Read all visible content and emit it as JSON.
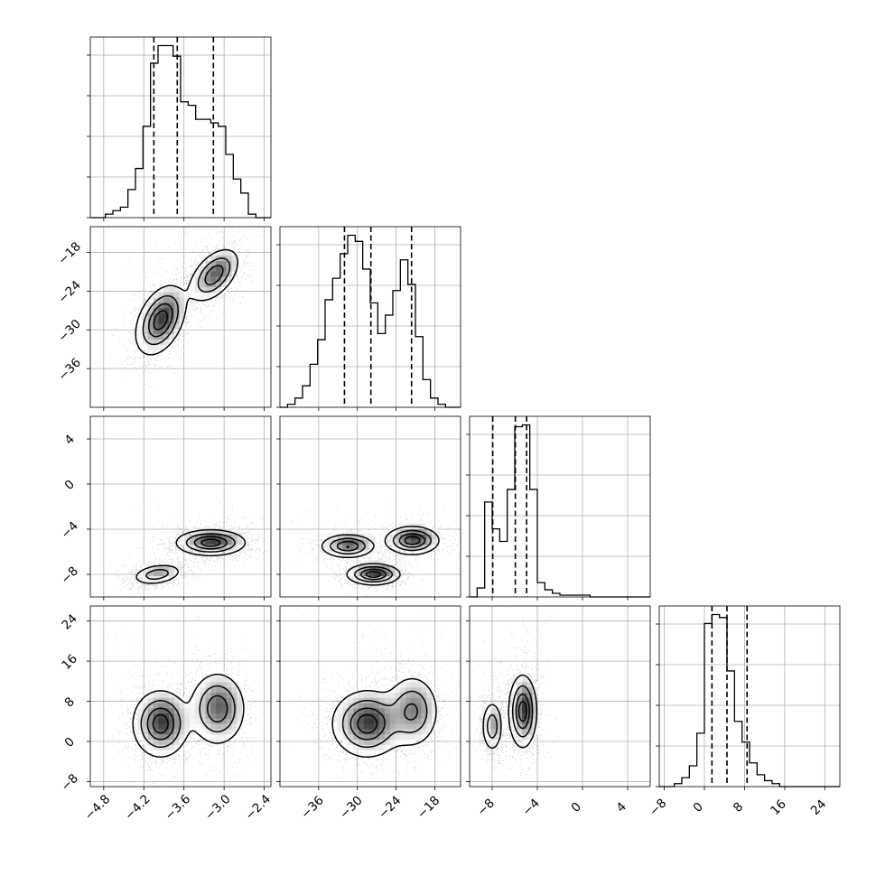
{
  "chart_data": {
    "type": "corner",
    "title": "",
    "parameters": [
      {
        "name": "",
        "range": [
          -5.0,
          -2.3
        ],
        "ticks": [
          -4.8,
          -4.2,
          -3.6,
          -3.0,
          -2.4
        ],
        "tick_labels": [
          "−4.8",
          "−4.2",
          "−3.6",
          "−3.0",
          "−2.4"
        ],
        "quantiles": [
          -4.05,
          -3.7,
          -3.16
        ],
        "components": [
          {
            "w": 0.5,
            "mu": -3.9,
            "sd": 0.2
          },
          {
            "w": 0.5,
            "mu": -3.1,
            "sd": 0.2
          }
        ]
      },
      {
        "name": "",
        "range": [
          -42.0,
          -14.0
        ],
        "ticks": [
          -36,
          -30,
          -24,
          -18
        ],
        "tick_labels": [
          "−36",
          "−30",
          "−24",
          "−18"
        ],
        "quantiles": [
          -32.0,
          -27.9,
          -21.6
        ],
        "components": [
          {
            "w": 0.6,
            "mu": -28.5,
            "sd": 2.6
          },
          {
            "w": 0.4,
            "mu": -21.5,
            "sd": 2.2
          }
        ]
      },
      {
        "name": "",
        "range": [
          -10.0,
          6.0
        ],
        "ticks": [
          -8,
          -4,
          0,
          4
        ],
        "tick_labels": [
          "−8",
          "−4",
          "0",
          "4"
        ],
        "quantiles": [
          -7.95,
          -5.95,
          -4.95
        ],
        "components": [
          {
            "w": 0.35,
            "mu": -8.0,
            "sd": 0.45
          },
          {
            "w": 0.6,
            "mu": -5.3,
            "sd": 0.6
          },
          {
            "w": 0.05,
            "mu": -2.0,
            "sd": 3.0
          }
        ]
      },
      {
        "name": "",
        "range": [
          -9.0,
          27.0
        ],
        "ticks": [
          -8,
          0,
          8,
          16,
          24
        ],
        "tick_labels": [
          "−8",
          "0",
          "8",
          "16",
          "24"
        ],
        "quantiles": [
          1.5,
          4.5,
          8.5
        ],
        "components": [
          {
            "w": 1.0,
            "mu": 4.8,
            "sd": 3.8
          }
        ]
      }
    ],
    "diagonal_histograms": [
      {
        "bins": [
          -5.0,
          -2.3
        ],
        "counts": [
          0,
          0,
          1,
          2,
          3,
          8,
          14,
          26,
          44,
          49,
          49,
          46,
          33,
          32,
          28,
          28,
          27,
          26,
          18,
          11,
          7,
          1,
          0,
          0
        ]
      },
      {
        "bins": [
          -42.0,
          -14.0
        ],
        "counts": [
          0,
          1,
          3,
          7,
          14,
          22,
          35,
          42,
          50,
          56,
          54,
          45,
          34,
          24,
          30,
          38,
          48,
          40,
          23,
          9,
          3,
          1,
          0,
          0
        ]
      },
      {
        "bins": [
          -10.0,
          6.0
        ],
        "counts": [
          0,
          5,
          53,
          38,
          31,
          60,
          95,
          96,
          60,
          8,
          4,
          2,
          1,
          1,
          1,
          1,
          0,
          0,
          0,
          0,
          0,
          0,
          0,
          0
        ]
      },
      {
        "bins": [
          -9.0,
          27.0
        ],
        "counts": [
          0,
          0,
          1,
          3,
          7,
          18,
          55,
          58,
          57,
          39,
          22,
          15,
          8,
          4,
          2,
          1,
          0,
          0,
          0,
          0,
          0,
          0,
          0,
          0
        ]
      }
    ],
    "blobs": [
      {
        "pair": [
          1,
          0
        ],
        "centers": [
          {
            "x": -3.95,
            "y": -28.5,
            "sx": 0.18,
            "sy": 2.6,
            "rho": 0.4,
            "w": 0.55
          },
          {
            "x": -3.15,
            "y": -21.5,
            "sx": 0.18,
            "sy": 2.0,
            "rho": 0.5,
            "w": 0.45
          }
        ]
      },
      {
        "pair": [
          2,
          0
        ],
        "centers": [
          {
            "x": -4.0,
            "y": -8.0,
            "sx": 0.18,
            "sy": 0.45,
            "rho": 0.3,
            "w": 0.35
          },
          {
            "x": -3.2,
            "y": -5.2,
            "sx": 0.25,
            "sy": 0.55,
            "rho": 0.0,
            "w": 0.65
          }
        ]
      },
      {
        "pair": [
          2,
          1
        ],
        "centers": [
          {
            "x": -31.5,
            "y": -5.5,
            "sx": 2.0,
            "sy": 0.5,
            "rho": 0.0,
            "w": 0.3
          },
          {
            "x": -27.5,
            "y": -8.0,
            "sx": 2.0,
            "sy": 0.45,
            "rho": 0.0,
            "w": 0.35
          },
          {
            "x": -21.5,
            "y": -5.0,
            "sx": 2.0,
            "sy": 0.6,
            "rho": 0.0,
            "w": 0.35
          }
        ]
      },
      {
        "pair": [
          3,
          0
        ],
        "centers": [
          {
            "x": -3.95,
            "y": 3.5,
            "sx": 0.2,
            "sy": 3.2,
            "rho": 0.0,
            "w": 0.55
          },
          {
            "x": -3.1,
            "y": 6.5,
            "sx": 0.2,
            "sy": 3.5,
            "rho": 0.0,
            "w": 0.45
          }
        ]
      },
      {
        "pair": [
          3,
          1
        ],
        "centers": [
          {
            "x": -28.5,
            "y": 3.5,
            "sx": 2.6,
            "sy": 3.2,
            "rho": 0.0,
            "w": 0.6
          },
          {
            "x": -21.5,
            "y": 6.0,
            "sx": 2.0,
            "sy": 3.5,
            "rho": 0.0,
            "w": 0.4
          }
        ]
      },
      {
        "pair": [
          3,
          2
        ],
        "centers": [
          {
            "x": -8.0,
            "y": 3.0,
            "sx": 0.45,
            "sy": 2.5,
            "rho": 0.0,
            "w": 0.35
          },
          {
            "x": -5.3,
            "y": 6.0,
            "sx": 0.6,
            "sy": 3.5,
            "rho": 0.0,
            "w": 0.65
          }
        ]
      }
    ],
    "grid": true
  }
}
